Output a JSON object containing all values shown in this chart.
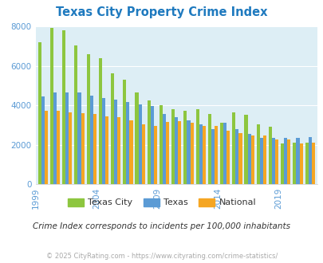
{
  "title": "Texas City Property Crime Index",
  "years": [
    1999,
    2000,
    2001,
    2002,
    2003,
    2004,
    2005,
    2006,
    2007,
    2008,
    2009,
    2010,
    2011,
    2012,
    2013,
    2014,
    2015,
    2016,
    2017,
    2018,
    2019,
    2020,
    2021
  ],
  "texas_city": [
    7200,
    7900,
    7800,
    7050,
    6600,
    6400,
    5600,
    5300,
    4650,
    4250,
    4000,
    3800,
    3700,
    3800,
    3550,
    3100,
    3650,
    3500,
    3050,
    2900,
    2050,
    2100,
    2100
  ],
  "texas": [
    4450,
    4650,
    4650,
    4650,
    4500,
    4350,
    4300,
    4150,
    4050,
    3950,
    3550,
    3400,
    3250,
    3050,
    2800,
    3100,
    2800,
    2550,
    2350,
    2350,
    2350,
    2350,
    2400
  ],
  "national": [
    3700,
    3700,
    3650,
    3600,
    3550,
    3450,
    3400,
    3250,
    3050,
    2950,
    3150,
    3200,
    3100,
    2950,
    2950,
    2700,
    2600,
    2450,
    2450,
    2250,
    2250,
    2050,
    2100
  ],
  "color_city": "#8dc63f",
  "color_texas": "#5b9bd5",
  "color_national": "#f5a623",
  "bg_color": "#ddeef5",
  "ylim": [
    0,
    8000
  ],
  "ylabel_ticks": [
    0,
    2000,
    4000,
    6000,
    8000
  ],
  "xlabel_ticks": [
    1999,
    2004,
    2009,
    2014,
    2019
  ],
  "subtitle": "Crime Index corresponds to incidents per 100,000 inhabitants",
  "footer": "© 2025 CityRating.com - https://www.cityrating.com/crime-statistics/",
  "title_color": "#1f7abf",
  "subtitle_color": "#333333",
  "footer_color": "#aaaaaa",
  "tick_label_color": "#5b9bd5"
}
